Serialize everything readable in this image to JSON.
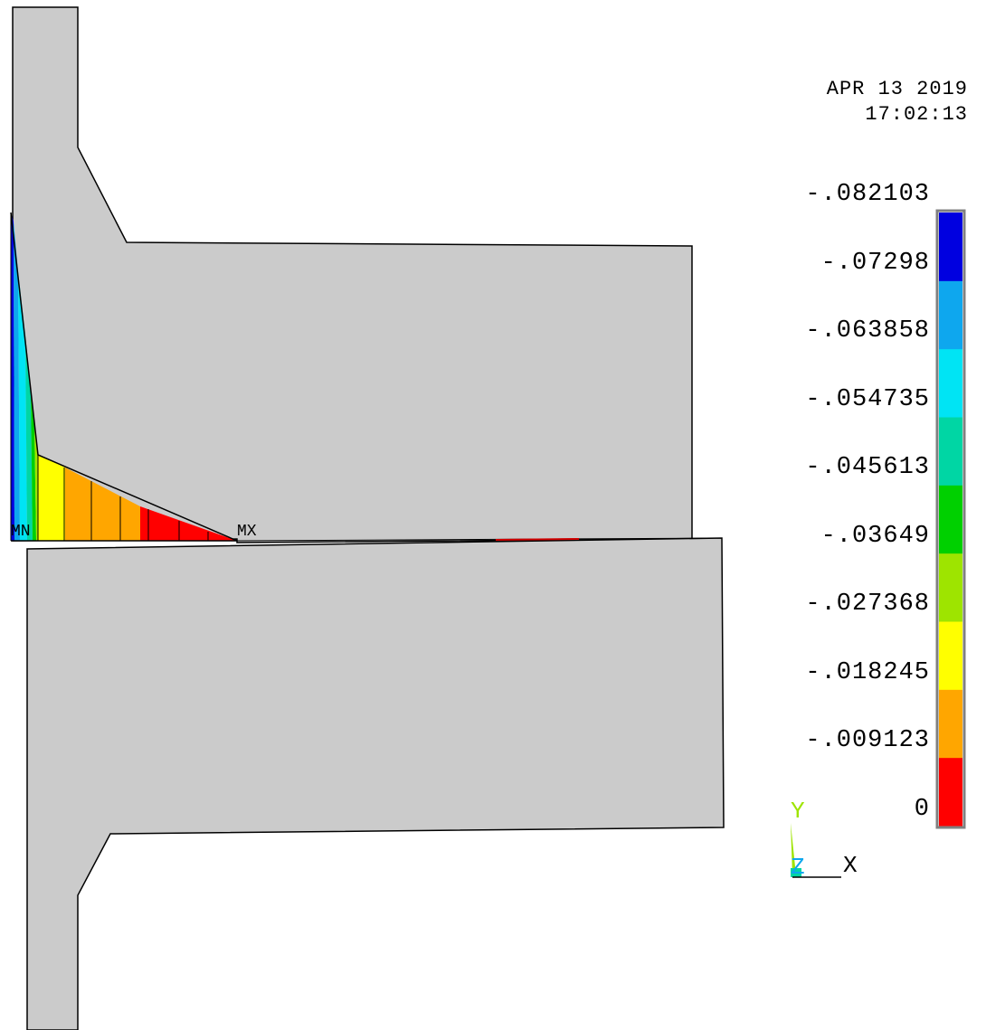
{
  "timestamp": {
    "date": "APR 13 2019",
    "time": "17:02:13"
  },
  "markers": {
    "min": "MN",
    "max": "MX"
  },
  "legend": {
    "labels": [
      "-.082103",
      "-.07298",
      "-.063858",
      "-.054735",
      "-.045613",
      "-.03649",
      "-.027368",
      "-.018245",
      "-.009123",
      "0"
    ],
    "colors": [
      "#0000e0",
      "#0ea7ee",
      "#00e4f4",
      "#00d6a4",
      "#00d000",
      "#9ee400",
      "#ffff00",
      "#ffa600",
      "#ff0000"
    ]
  },
  "triad": {
    "y_label": "Y",
    "z_label": "Z",
    "x_label": "X"
  },
  "colors": {
    "body": "#cbcbcb",
    "background": "#ffffff"
  }
}
